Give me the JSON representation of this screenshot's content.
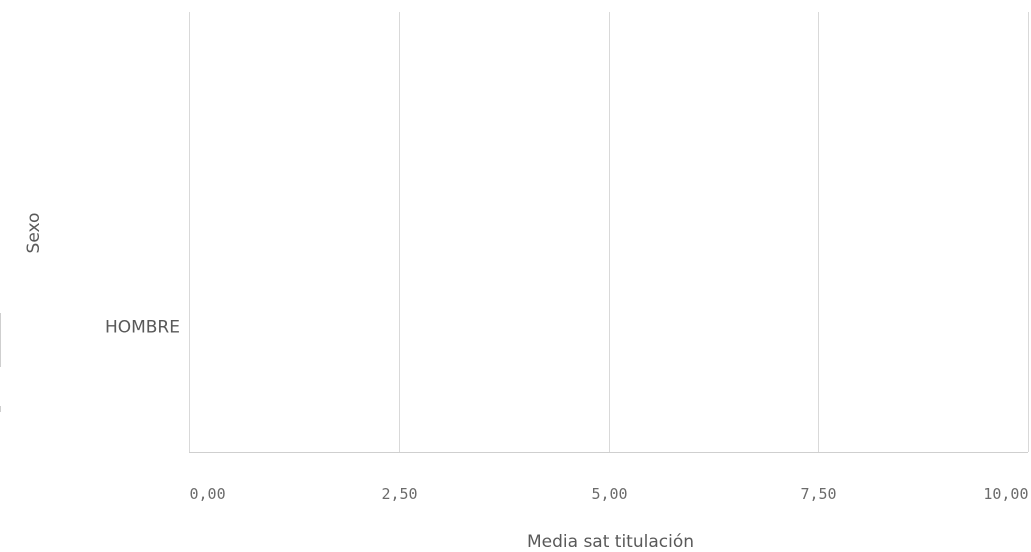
{
  "chart_data": {
    "type": "bar",
    "orientation": "horizontal",
    "categories": [
      "HOMBRE"
    ],
    "series": [
      {
        "values": [
          0
        ]
      }
    ],
    "xlabel": "Media sat titulación",
    "ylabel": "Sexo",
    "xlim": [
      0,
      10
    ],
    "xticks": [
      "0,00",
      "2,50",
      "5,00",
      "7,50",
      "10,00"
    ],
    "grid": true,
    "colors": {
      "grid": "#d9d9d9",
      "text": "#595959",
      "bar": "#4477aa"
    }
  }
}
